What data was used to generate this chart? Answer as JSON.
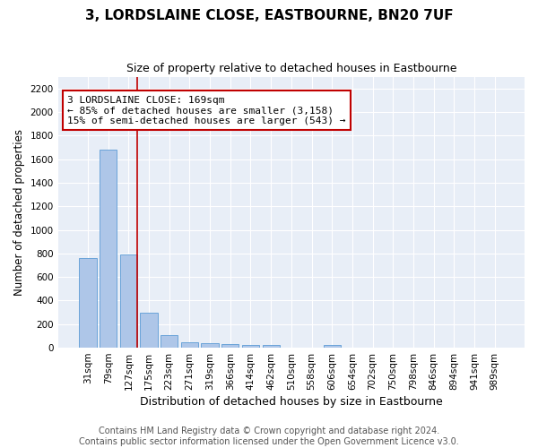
{
  "title": "3, LORDSLAINE CLOSE, EASTBOURNE, BN20 7UF",
  "subtitle": "Size of property relative to detached houses in Eastbourne",
  "xlabel": "Distribution of detached houses by size in Eastbourne",
  "ylabel": "Number of detached properties",
  "categories": [
    "31sqm",
    "79sqm",
    "127sqm",
    "175sqm",
    "223sqm",
    "271sqm",
    "319sqm",
    "366sqm",
    "414sqm",
    "462sqm",
    "510sqm",
    "558sqm",
    "606sqm",
    "654sqm",
    "702sqm",
    "750sqm",
    "798sqm",
    "846sqm",
    "894sqm",
    "941sqm",
    "989sqm"
  ],
  "values": [
    760,
    1680,
    795,
    300,
    110,
    45,
    35,
    30,
    25,
    20,
    0,
    0,
    25,
    0,
    0,
    0,
    0,
    0,
    0,
    0,
    0
  ],
  "bar_color": "#aec6e8",
  "bar_edgecolor": "#5b9bd5",
  "ylim": [
    0,
    2300
  ],
  "yticks": [
    0,
    200,
    400,
    600,
    800,
    1000,
    1200,
    1400,
    1600,
    1800,
    2000,
    2200
  ],
  "vline_x": 2.44,
  "vline_color": "#c00000",
  "annotation_text": "3 LORDSLAINE CLOSE: 169sqm\n← 85% of detached houses are smaller (3,158)\n15% of semi-detached houses are larger (543) →",
  "footer_line1": "Contains HM Land Registry data © Crown copyright and database right 2024.",
  "footer_line2": "Contains public sector information licensed under the Open Government Licence v3.0.",
  "fig_background": "#ffffff",
  "plot_background": "#e8eef7",
  "grid_color": "#ffffff",
  "title_fontsize": 11,
  "subtitle_fontsize": 9,
  "axis_label_fontsize": 8.5,
  "tick_fontsize": 7.5,
  "annotation_fontsize": 8,
  "footer_fontsize": 7
}
